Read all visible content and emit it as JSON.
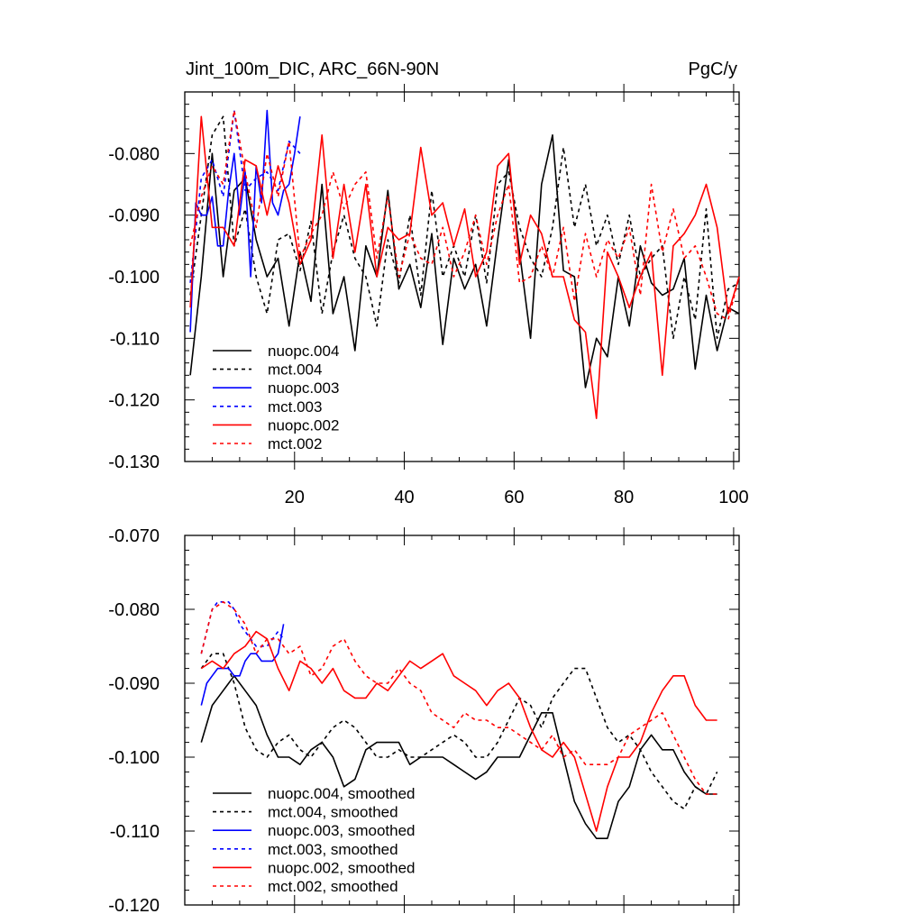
{
  "chart_data": [
    {
      "type": "line",
      "title": "Jint_100m_DIC, ARC_66N-90N",
      "units": "PgC/y",
      "xlim": [
        0,
        101
      ],
      "ylim": [
        -0.13,
        -0.07
      ],
      "xticks": [
        20,
        40,
        60,
        80,
        100
      ],
      "xtick_labels": [
        "20",
        "40",
        "60",
        "80",
        "100"
      ],
      "yticks": [
        -0.08,
        -0.09,
        -0.1,
        -0.11,
        -0.12,
        -0.13
      ],
      "ytick_labels": [
        "-0.080",
        "-0.090",
        "-0.100",
        "-0.110",
        "-0.120",
        "-0.130"
      ],
      "legend_position": "bottom-left",
      "series": [
        {
          "name": "nuopc.004",
          "color": "#000000",
          "style": "solid",
          "x": [
            1,
            3,
            5,
            7,
            9,
            11,
            13,
            15,
            17,
            19,
            21,
            23,
            25,
            27,
            29,
            31,
            33,
            35,
            37,
            39,
            41,
            43,
            45,
            47,
            49,
            51,
            53,
            55,
            57,
            59,
            61,
            63,
            65,
            67,
            69,
            71,
            73,
            75,
            77,
            79,
            81,
            83,
            85,
            87,
            89,
            91,
            93,
            95,
            97,
            99,
            101
          ],
          "values": [
            -0.116,
            -0.1,
            -0.08,
            -0.1,
            -0.086,
            -0.084,
            -0.094,
            -0.1,
            -0.097,
            -0.108,
            -0.096,
            -0.104,
            -0.085,
            -0.106,
            -0.1,
            -0.112,
            -0.095,
            -0.1,
            -0.086,
            -0.102,
            -0.098,
            -0.105,
            -0.093,
            -0.111,
            -0.097,
            -0.102,
            -0.098,
            -0.108,
            -0.094,
            -0.081,
            -0.096,
            -0.11,
            -0.085,
            -0.077,
            -0.099,
            -0.1,
            -0.118,
            -0.11,
            -0.113,
            -0.1,
            -0.108,
            -0.095,
            -0.101,
            -0.103,
            -0.102,
            -0.097,
            -0.115,
            -0.103,
            -0.112,
            -0.105,
            -0.106
          ]
        },
        {
          "name": "mct.004",
          "color": "#000000",
          "style": "dashed",
          "x": [
            1,
            3,
            5,
            7,
            9,
            11,
            13,
            15,
            17,
            19,
            21,
            23,
            25,
            27,
            29,
            31,
            33,
            35,
            37,
            39,
            41,
            43,
            45,
            47,
            49,
            51,
            53,
            55,
            57,
            59,
            61,
            63,
            65,
            67,
            69,
            71,
            73,
            75,
            77,
            79,
            81,
            83,
            85,
            87,
            89,
            91,
            93,
            95,
            97,
            99,
            101
          ],
          "values": [
            -0.103,
            -0.09,
            -0.077,
            -0.074,
            -0.095,
            -0.089,
            -0.1,
            -0.106,
            -0.094,
            -0.093,
            -0.099,
            -0.091,
            -0.106,
            -0.096,
            -0.09,
            -0.097,
            -0.1,
            -0.108,
            -0.094,
            -0.101,
            -0.09,
            -0.103,
            -0.086,
            -0.1,
            -0.095,
            -0.1,
            -0.09,
            -0.101,
            -0.085,
            -0.083,
            -0.092,
            -0.097,
            -0.1,
            -0.092,
            -0.079,
            -0.092,
            -0.085,
            -0.095,
            -0.09,
            -0.098,
            -0.09,
            -0.1,
            -0.097,
            -0.095,
            -0.11,
            -0.1,
            -0.107,
            -0.089,
            -0.11,
            -0.102,
            -0.101
          ]
        },
        {
          "name": "nuopc.003",
          "color": "#0000ff",
          "style": "solid",
          "x": [
            1,
            2,
            3,
            4,
            5,
            6,
            7,
            8,
            9,
            10,
            11,
            12,
            13,
            14,
            15,
            16,
            17,
            18,
            19,
            20,
            21
          ],
          "values": [
            -0.109,
            -0.088,
            -0.09,
            -0.09,
            -0.087,
            -0.095,
            -0.095,
            -0.086,
            -0.08,
            -0.09,
            -0.083,
            -0.1,
            -0.082,
            -0.088,
            -0.073,
            -0.088,
            -0.09,
            -0.086,
            -0.085,
            -0.08,
            -0.074
          ]
        },
        {
          "name": "mct.003",
          "color": "#0000ff",
          "style": "dashed",
          "x": [
            1,
            3,
            5,
            7,
            9,
            11,
            13,
            15,
            17,
            19,
            21
          ],
          "values": [
            -0.101,
            -0.084,
            -0.081,
            -0.087,
            -0.073,
            -0.086,
            -0.084,
            -0.083,
            -0.086,
            -0.078,
            -0.08
          ]
        },
        {
          "name": "nuopc.002",
          "color": "#ff0000",
          "style": "solid",
          "x": [
            1,
            3,
            5,
            7,
            9,
            11,
            13,
            15,
            17,
            19,
            21,
            23,
            25,
            27,
            29,
            31,
            33,
            35,
            37,
            39,
            41,
            43,
            45,
            47,
            49,
            51,
            53,
            55,
            57,
            59,
            61,
            63,
            65,
            67,
            69,
            71,
            73,
            75,
            77,
            79,
            81,
            83,
            85,
            87,
            89,
            91,
            93,
            95,
            97,
            99,
            101
          ],
          "values": [
            -0.105,
            -0.074,
            -0.092,
            -0.092,
            -0.095,
            -0.081,
            -0.082,
            -0.09,
            -0.082,
            -0.088,
            -0.098,
            -0.094,
            -0.077,
            -0.097,
            -0.085,
            -0.096,
            -0.085,
            -0.1,
            -0.092,
            -0.094,
            -0.093,
            -0.079,
            -0.09,
            -0.088,
            -0.095,
            -0.089,
            -0.1,
            -0.096,
            -0.082,
            -0.08,
            -0.098,
            -0.09,
            -0.093,
            -0.1,
            -0.1,
            -0.107,
            -0.109,
            -0.123,
            -0.096,
            -0.1,
            -0.105,
            -0.1,
            -0.096,
            -0.116,
            -0.095,
            -0.093,
            -0.09,
            -0.085,
            -0.092,
            -0.106,
            -0.1
          ]
        },
        {
          "name": "mct.002",
          "color": "#ff0000",
          "style": "dashed",
          "x": [
            1,
            3,
            5,
            7,
            9,
            11,
            13,
            15,
            17,
            19,
            21,
            23,
            25,
            27,
            29,
            31,
            33,
            35,
            37,
            39,
            41,
            43,
            45,
            47,
            49,
            51,
            53,
            55,
            57,
            59,
            61,
            63,
            65,
            67,
            69,
            71,
            73,
            75,
            77,
            79,
            81,
            83,
            85,
            87,
            89,
            91,
            93,
            95,
            97,
            99,
            101
          ],
          "values": [
            -0.095,
            -0.087,
            -0.082,
            -0.085,
            -0.073,
            -0.083,
            -0.092,
            -0.08,
            -0.087,
            -0.078,
            -0.097,
            -0.093,
            -0.09,
            -0.083,
            -0.089,
            -0.085,
            -0.083,
            -0.097,
            -0.087,
            -0.1,
            -0.093,
            -0.097,
            -0.098,
            -0.092,
            -0.1,
            -0.096,
            -0.09,
            -0.098,
            -0.09,
            -0.085,
            -0.101,
            -0.1,
            -0.095,
            -0.1,
            -0.092,
            -0.104,
            -0.093,
            -0.1,
            -0.094,
            -0.097,
            -0.092,
            -0.103,
            -0.085,
            -0.096,
            -0.089,
            -0.097,
            -0.095,
            -0.1,
            -0.106,
            -0.107,
            -0.1
          ]
        }
      ]
    },
    {
      "type": "line",
      "title": "",
      "xlim": [
        0,
        101
      ],
      "ylim": [
        -0.12,
        -0.07
      ],
      "xticks": [
        20,
        40,
        60,
        80,
        100
      ],
      "xtick_labels": [
        "",
        "",
        "",
        "",
        ""
      ],
      "yticks": [
        -0.07,
        -0.08,
        -0.09,
        -0.1,
        -0.11,
        -0.12
      ],
      "ytick_labels": [
        "-0.070",
        "-0.080",
        "-0.090",
        "-0.100",
        "-0.110",
        "-0.120"
      ],
      "legend_position": "bottom-left",
      "series": [
        {
          "name": "nuopc.004, smoothed",
          "color": "#000000",
          "style": "solid",
          "x": [
            3,
            5,
            7,
            9,
            11,
            13,
            15,
            17,
            19,
            21,
            23,
            25,
            27,
            29,
            31,
            33,
            35,
            37,
            39,
            41,
            43,
            45,
            47,
            49,
            51,
            53,
            55,
            57,
            59,
            61,
            63,
            65,
            67,
            69,
            71,
            73,
            75,
            77,
            79,
            81,
            83,
            85,
            87,
            89,
            91,
            93,
            95,
            97
          ],
          "values": [
            -0.098,
            -0.093,
            -0.091,
            -0.089,
            -0.091,
            -0.093,
            -0.097,
            -0.1,
            -0.1,
            -0.101,
            -0.099,
            -0.098,
            -0.1,
            -0.104,
            -0.103,
            -0.099,
            -0.098,
            -0.098,
            -0.098,
            -0.101,
            -0.1,
            -0.1,
            -0.1,
            -0.101,
            -0.102,
            -0.103,
            -0.102,
            -0.1,
            -0.1,
            -0.1,
            -0.097,
            -0.094,
            -0.094,
            -0.1,
            -0.106,
            -0.109,
            -0.111,
            -0.111,
            -0.106,
            -0.104,
            -0.099,
            -0.097,
            -0.099,
            -0.099,
            -0.102,
            -0.104,
            -0.105,
            -0.105
          ]
        },
        {
          "name": "mct.004, smoothed",
          "color": "#000000",
          "style": "dashed",
          "x": [
            3,
            5,
            7,
            9,
            11,
            13,
            15,
            17,
            19,
            21,
            23,
            25,
            27,
            29,
            31,
            33,
            35,
            37,
            39,
            41,
            43,
            45,
            47,
            49,
            51,
            53,
            55,
            57,
            59,
            61,
            63,
            65,
            67,
            69,
            71,
            73,
            75,
            77,
            79,
            81,
            83,
            85,
            87,
            89,
            91,
            93,
            95,
            97
          ],
          "values": [
            -0.088,
            -0.086,
            -0.086,
            -0.09,
            -0.096,
            -0.099,
            -0.1,
            -0.098,
            -0.097,
            -0.099,
            -0.1,
            -0.098,
            -0.096,
            -0.095,
            -0.096,
            -0.098,
            -0.1,
            -0.1,
            -0.099,
            -0.1,
            -0.1,
            -0.099,
            -0.098,
            -0.097,
            -0.098,
            -0.1,
            -0.1,
            -0.098,
            -0.095,
            -0.092,
            -0.093,
            -0.096,
            -0.092,
            -0.09,
            -0.088,
            -0.088,
            -0.092,
            -0.096,
            -0.098,
            -0.097,
            -0.099,
            -0.102,
            -0.104,
            -0.106,
            -0.107,
            -0.104,
            -0.105,
            -0.102
          ]
        },
        {
          "name": "nuopc.003, smoothed",
          "color": "#0000ff",
          "style": "solid",
          "x": [
            3,
            4,
            5,
            6,
            7,
            8,
            9,
            10,
            11,
            12,
            13,
            14,
            15,
            16,
            17,
            18
          ],
          "values": [
            -0.093,
            -0.09,
            -0.089,
            -0.088,
            -0.088,
            -0.088,
            -0.089,
            -0.089,
            -0.087,
            -0.086,
            -0.086,
            -0.087,
            -0.087,
            -0.087,
            -0.086,
            -0.082
          ]
        },
        {
          "name": "mct.003, smoothed",
          "color": "#0000ff",
          "style": "dashed",
          "x": [
            3,
            4,
            5,
            6,
            7,
            8,
            9,
            10,
            11,
            12,
            13,
            14,
            15,
            16,
            17,
            18
          ],
          "values": [
            -0.086,
            -0.083,
            -0.08,
            -0.079,
            -0.079,
            -0.079,
            -0.08,
            -0.082,
            -0.083,
            -0.084,
            -0.085,
            -0.085,
            -0.085,
            -0.084,
            -0.083,
            -0.084
          ]
        },
        {
          "name": "nuopc.002, smoothed",
          "color": "#ff0000",
          "style": "solid",
          "x": [
            3,
            5,
            7,
            9,
            11,
            13,
            15,
            17,
            19,
            21,
            23,
            25,
            27,
            29,
            31,
            33,
            35,
            37,
            39,
            41,
            43,
            45,
            47,
            49,
            51,
            53,
            55,
            57,
            59,
            61,
            63,
            65,
            67,
            69,
            71,
            73,
            75,
            77,
            79,
            81,
            83,
            85,
            87,
            89,
            91,
            93,
            95,
            97
          ],
          "values": [
            -0.088,
            -0.087,
            -0.088,
            -0.086,
            -0.085,
            -0.083,
            -0.084,
            -0.088,
            -0.091,
            -0.087,
            -0.088,
            -0.09,
            -0.088,
            -0.091,
            -0.092,
            -0.092,
            -0.09,
            -0.091,
            -0.089,
            -0.087,
            -0.088,
            -0.087,
            -0.086,
            -0.089,
            -0.09,
            -0.091,
            -0.093,
            -0.091,
            -0.09,
            -0.092,
            -0.096,
            -0.099,
            -0.1,
            -0.098,
            -0.1,
            -0.105,
            -0.11,
            -0.104,
            -0.1,
            -0.1,
            -0.098,
            -0.094,
            -0.091,
            -0.089,
            -0.089,
            -0.093,
            -0.095,
            -0.095
          ]
        },
        {
          "name": "mct.002, smoothed",
          "color": "#ff0000",
          "style": "dashed",
          "x": [
            3,
            5,
            7,
            9,
            11,
            13,
            15,
            17,
            19,
            21,
            23,
            25,
            27,
            29,
            31,
            33,
            35,
            37,
            39,
            41,
            43,
            45,
            47,
            49,
            51,
            53,
            55,
            57,
            59,
            61,
            63,
            65,
            67,
            69,
            71,
            73,
            75,
            77,
            79,
            81,
            83,
            85,
            87,
            89,
            91,
            93,
            95,
            97
          ],
          "values": [
            -0.086,
            -0.08,
            -0.079,
            -0.08,
            -0.082,
            -0.086,
            -0.084,
            -0.084,
            -0.086,
            -0.085,
            -0.089,
            -0.088,
            -0.085,
            -0.084,
            -0.087,
            -0.089,
            -0.09,
            -0.09,
            -0.088,
            -0.09,
            -0.091,
            -0.094,
            -0.095,
            -0.096,
            -0.094,
            -0.095,
            -0.095,
            -0.096,
            -0.096,
            -0.097,
            -0.098,
            -0.099,
            -0.097,
            -0.1,
            -0.099,
            -0.101,
            -0.101,
            -0.101,
            -0.1,
            -0.097,
            -0.096,
            -0.095,
            -0.094,
            -0.097,
            -0.1,
            -0.103,
            -0.105,
            -0.105
          ]
        }
      ]
    }
  ]
}
